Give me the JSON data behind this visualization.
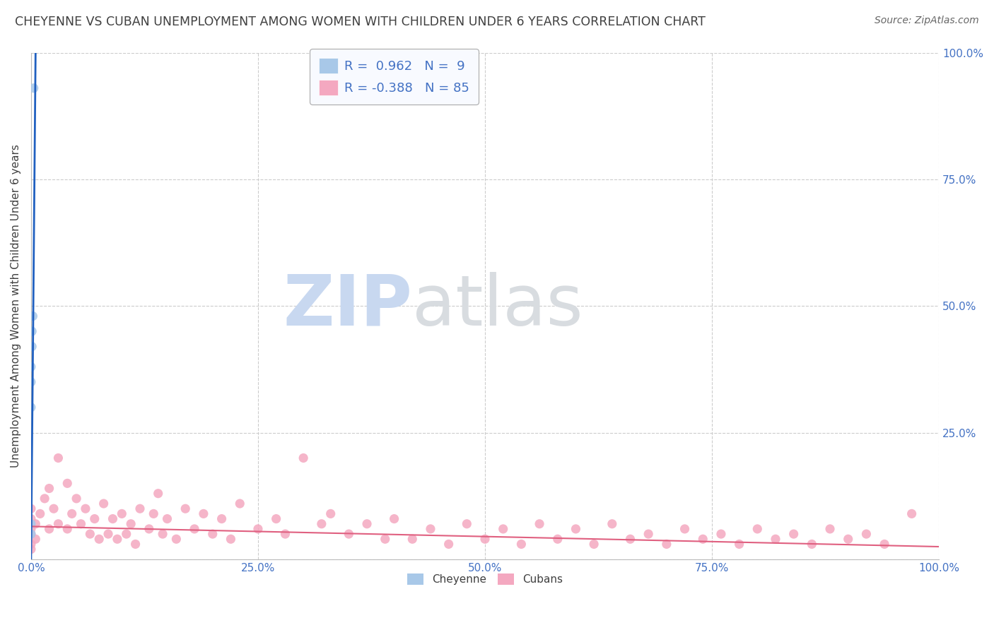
{
  "title": "CHEYENNE VS CUBAN UNEMPLOYMENT AMONG WOMEN WITH CHILDREN UNDER 6 YEARS CORRELATION CHART",
  "source": "Source: ZipAtlas.com",
  "ylabel": "Unemployment Among Women with Children Under 6 years",
  "xlabel": "",
  "xlim": [
    0,
    1.0
  ],
  "ylim": [
    0,
    1.0
  ],
  "xticks": [
    0.0,
    0.25,
    0.5,
    0.75,
    1.0
  ],
  "xticklabels": [
    "0.0%",
    "25.0%",
    "50.0%",
    "75.0%",
    "100.0%"
  ],
  "yticks_right": [
    0.25,
    0.5,
    0.75,
    1.0
  ],
  "yticklabels_right": [
    "25.0%",
    "50.0%",
    "75.0%",
    "100.0%"
  ],
  "yticks_grid": [
    0.0,
    0.25,
    0.5,
    0.75,
    1.0
  ],
  "cheyenne_color": "#a8c8e8",
  "cuban_color": "#f4a8c0",
  "blue_line_color": "#2060c0",
  "pink_line_color": "#e06080",
  "bg_color": "#ffffff",
  "grid_color": "#cccccc",
  "R_cheyenne": 0.962,
  "N_cheyenne": 9,
  "R_cuban": -0.388,
  "N_cuban": 85,
  "cheyenne_x": [
    0.0,
    0.0,
    0.0,
    0.0,
    0.0,
    0.001,
    0.001,
    0.002,
    0.003
  ],
  "cheyenne_y": [
    0.05,
    0.07,
    0.3,
    0.35,
    0.38,
    0.42,
    0.45,
    0.48,
    0.93
  ],
  "cuban_x": [
    0.0,
    0.0,
    0.0,
    0.0,
    0.0,
    0.0,
    0.005,
    0.005,
    0.01,
    0.015,
    0.02,
    0.02,
    0.025,
    0.03,
    0.03,
    0.04,
    0.04,
    0.045,
    0.05,
    0.055,
    0.06,
    0.065,
    0.07,
    0.075,
    0.08,
    0.085,
    0.09,
    0.095,
    0.1,
    0.105,
    0.11,
    0.115,
    0.12,
    0.13,
    0.135,
    0.14,
    0.145,
    0.15,
    0.16,
    0.17,
    0.18,
    0.19,
    0.2,
    0.21,
    0.22,
    0.23,
    0.25,
    0.27,
    0.28,
    0.3,
    0.32,
    0.33,
    0.35,
    0.37,
    0.39,
    0.4,
    0.42,
    0.44,
    0.46,
    0.48,
    0.5,
    0.52,
    0.54,
    0.56,
    0.58,
    0.6,
    0.62,
    0.64,
    0.66,
    0.68,
    0.7,
    0.72,
    0.74,
    0.76,
    0.78,
    0.8,
    0.82,
    0.84,
    0.86,
    0.88,
    0.9,
    0.92,
    0.94,
    0.97
  ],
  "cuban_y": [
    0.03,
    0.05,
    0.08,
    0.1,
    0.06,
    0.02,
    0.07,
    0.04,
    0.09,
    0.12,
    0.14,
    0.06,
    0.1,
    0.2,
    0.07,
    0.15,
    0.06,
    0.09,
    0.12,
    0.07,
    0.1,
    0.05,
    0.08,
    0.04,
    0.11,
    0.05,
    0.08,
    0.04,
    0.09,
    0.05,
    0.07,
    0.03,
    0.1,
    0.06,
    0.09,
    0.13,
    0.05,
    0.08,
    0.04,
    0.1,
    0.06,
    0.09,
    0.05,
    0.08,
    0.04,
    0.11,
    0.06,
    0.08,
    0.05,
    0.2,
    0.07,
    0.09,
    0.05,
    0.07,
    0.04,
    0.08,
    0.04,
    0.06,
    0.03,
    0.07,
    0.04,
    0.06,
    0.03,
    0.07,
    0.04,
    0.06,
    0.03,
    0.07,
    0.04,
    0.05,
    0.03,
    0.06,
    0.04,
    0.05,
    0.03,
    0.06,
    0.04,
    0.05,
    0.03,
    0.06,
    0.04,
    0.05,
    0.03,
    0.09
  ],
  "watermark_zip": "ZIP",
  "watermark_atlas": "atlas",
  "watermark_zip_color": "#c8d8f0",
  "watermark_atlas_color": "#d8dce0",
  "title_color": "#404040",
  "tick_color": "#4472c4",
  "legend_color": "#4472c4",
  "source_color": "#666666",
  "legend_box_color": "#e0e8f8",
  "legend_border_color": "#aaaaaa",
  "marker_size": 90,
  "blue_line_x0": 0.0,
  "blue_line_y0": 0.0,
  "blue_line_x1": 0.005,
  "blue_line_y1": 1.0,
  "pink_line_x0": 0.0,
  "pink_line_y0": 0.065,
  "pink_line_x1": 1.0,
  "pink_line_y1": 0.025
}
